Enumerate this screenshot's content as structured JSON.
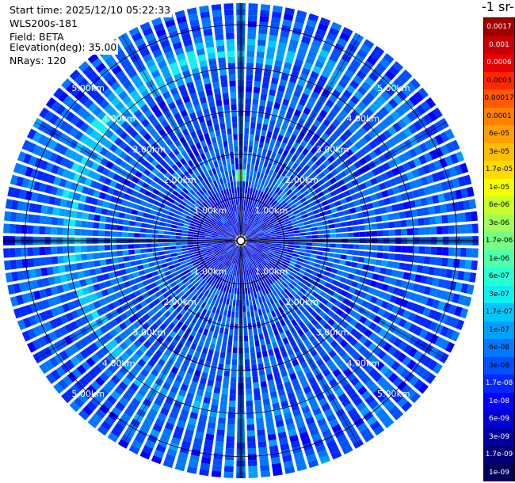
{
  "info": {
    "start_time": "Start time: 2025/12/10 05:22:33",
    "instrument": "WLS200s-181",
    "field": "Field: BETA",
    "elevation": "Elevation(deg): 35.00",
    "nrays": "NRays: 120"
  },
  "colorbar": {
    "units_title": "-1 sr-",
    "labels": [
      "0.0017",
      "0.001",
      "0.0006",
      "0.0003",
      "0.00017",
      "0.0001",
      "6e-05",
      "3e-05",
      "1.7e-05",
      "1e-05",
      "6e-06",
      "3e-06",
      "1.7e-06",
      "1e-06",
      "6e-07",
      "3e-07",
      "1.7e-07",
      "1e-07",
      "6e-08",
      "3e-08",
      "1.7e-08",
      "1e-08",
      "6e-09",
      "3e-09",
      "1.7e-09",
      "1e-09"
    ],
    "colors": [
      "#a00000",
      "#c80000",
      "#e60000",
      "#ff2800",
      "#ff5a00",
      "#ff8200",
      "#ffa000",
      "#ffbe00",
      "#ffdc00",
      "#f5ff00",
      "#c8ff28",
      "#a0ff5a",
      "#78ff82",
      "#50ffaa",
      "#28ffd2",
      "#10f0f0",
      "#00c8ff",
      "#00a0ff",
      "#0078ff",
      "#0050ff",
      "#0028ff",
      "#0000ff",
      "#0000d2",
      "#0000a0",
      "#000078",
      "#00005a"
    ]
  },
  "chart_data": {
    "type": "heatmap",
    "projection": "polar-ppi",
    "field": "BETA",
    "elevation_deg": 35.0,
    "nrays": 120,
    "range_rings_km": [
      1,
      2,
      3,
      4,
      5
    ],
    "max_range_km": 5.5,
    "ring_labels": [
      "1.00km",
      "2.00km",
      "3.00km",
      "4.00km",
      "5.00km"
    ],
    "features": {
      "enhanced_ring_km": [
        3.9,
        4.5
      ],
      "enhanced_ring_value": 1.7e-07,
      "background_value": 3e-08,
      "near_range_value": 1e-08,
      "local_maximum": {
        "azimuth_deg": 360,
        "range_km": 1.55,
        "value": 1e-06
      }
    }
  }
}
